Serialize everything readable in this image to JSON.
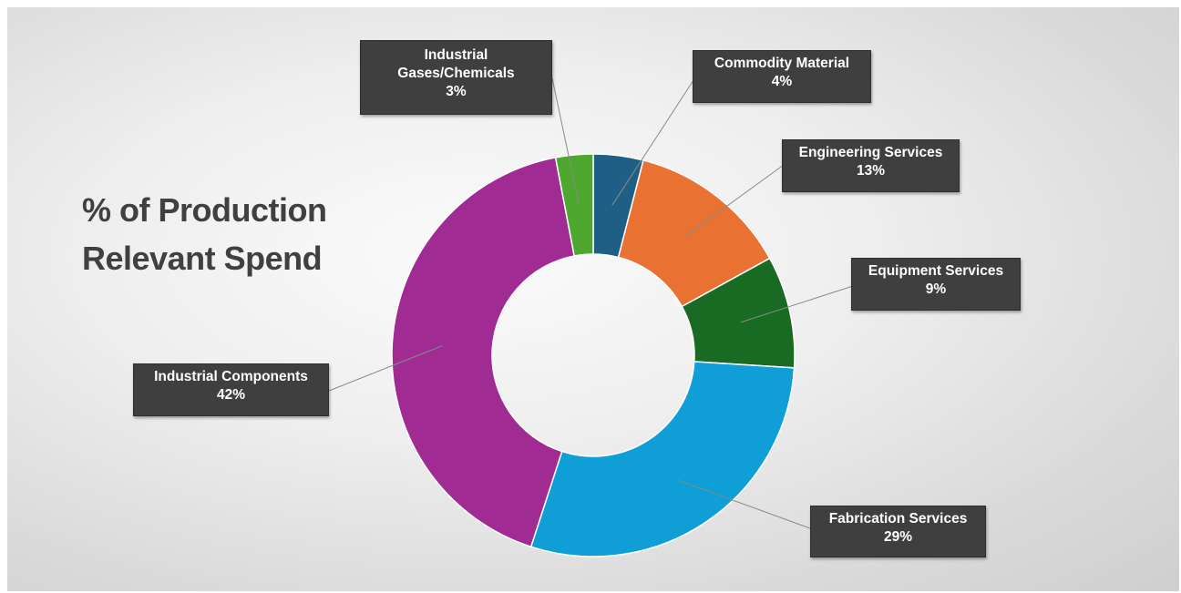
{
  "chart_data": {
    "type": "pie",
    "title": "% of Production Relevant Spend",
    "donut": true,
    "series": [
      {
        "categories": [
          "Commodity Material",
          "Engineering Services",
          "Equipment Services",
          "Fabrication Services",
          "Industrial Components",
          "Industrial Gases/Chemicals"
        ],
        "values": [
          4,
          13,
          9,
          29,
          42,
          3
        ],
        "labels": [
          "4%",
          "13%",
          "9%",
          "29%",
          "42%",
          "3%"
        ],
        "colors": [
          "#1f5f86",
          "#e97132",
          "#196b24",
          "#0f9ed5",
          "#a02b93",
          "#4ea72e"
        ]
      }
    ],
    "data_labels": [
      {
        "line1": "Commodity Material",
        "line2": "",
        "value": "4%"
      },
      {
        "line1": "Engineering Services",
        "line2": "",
        "value": "13%"
      },
      {
        "line1": "Equipment Services",
        "line2": "",
        "value": "9%"
      },
      {
        "line1": "Fabrication Services",
        "line2": "",
        "value": "29%"
      },
      {
        "line1": "Industrial Components",
        "line2": "",
        "value": "42%"
      },
      {
        "line1": "Industrial",
        "line2": "Gases/Chemicals",
        "value": "3%"
      }
    ],
    "legend": "none"
  }
}
